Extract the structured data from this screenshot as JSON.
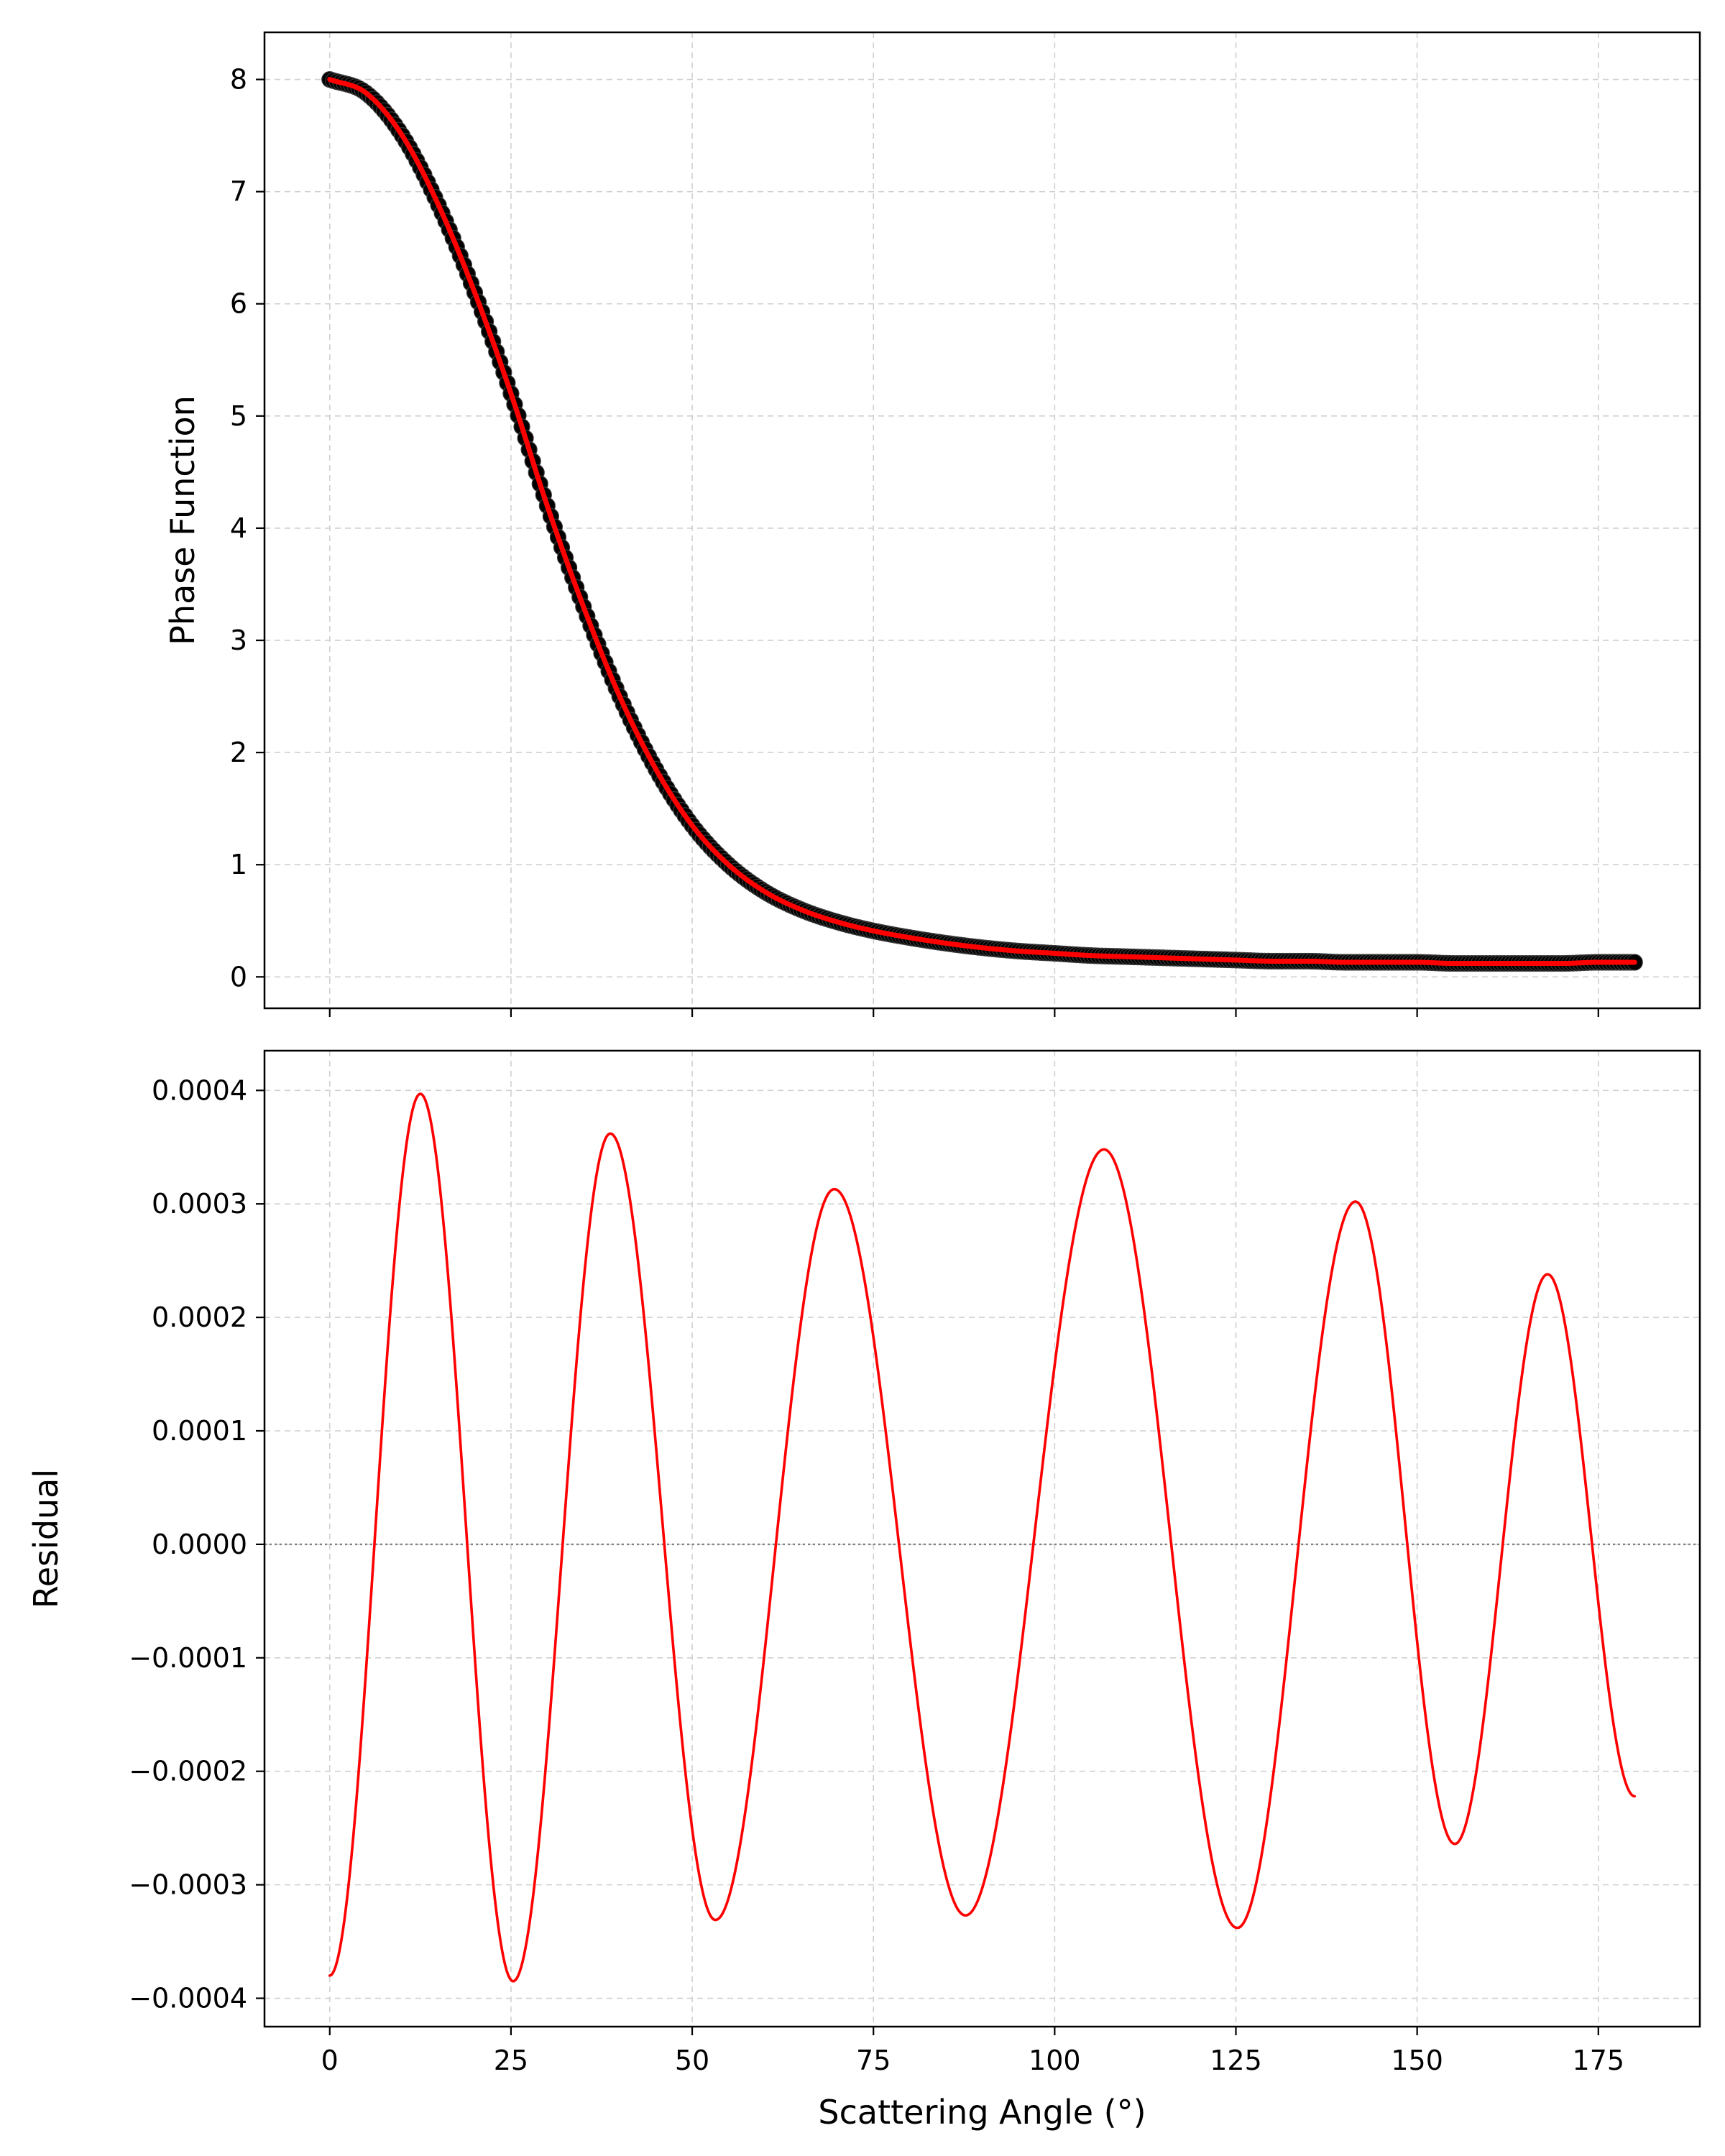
{
  "figure": {
    "background": "#ffffff"
  },
  "chart_data": [
    {
      "type": "line",
      "title": "",
      "xlabel": "",
      "ylabel": "Phase Function",
      "xlim": [
        -9,
        189
      ],
      "ylim": [
        -0.28,
        8.42
      ],
      "xticks": [
        0,
        25,
        50,
        75,
        100,
        125,
        150,
        175
      ],
      "xtick_labels_visible": false,
      "yticks": [
        0,
        1,
        2,
        3,
        4,
        5,
        6,
        7,
        8
      ],
      "ytick_labels": [
        "0",
        "1",
        "2",
        "3",
        "4",
        "5",
        "6",
        "7",
        "8"
      ],
      "grid": true,
      "legend": "none",
      "series": [
        {
          "style": "markers",
          "color": "#000000",
          "x": [
            0,
            5,
            10,
            15,
            20,
            25,
            30,
            35,
            40,
            45,
            50,
            55,
            60,
            65,
            70,
            75,
            80,
            85,
            90,
            95,
            100,
            105,
            110,
            115,
            120,
            125,
            130,
            135,
            140,
            145,
            150,
            155,
            160,
            165,
            170,
            175,
            180
          ],
          "y": [
            8.0,
            7.88,
            7.5,
            6.88,
            6.1,
            5.2,
            4.2,
            3.3,
            2.5,
            1.85,
            1.35,
            1.0,
            0.76,
            0.6,
            0.49,
            0.41,
            0.35,
            0.3,
            0.26,
            0.23,
            0.21,
            0.19,
            0.18,
            0.17,
            0.16,
            0.15,
            0.14,
            0.14,
            0.13,
            0.13,
            0.13,
            0.12,
            0.12,
            0.12,
            0.12,
            0.13,
            0.13
          ]
        },
        {
          "style": "line",
          "color": "#ff0000",
          "x": [
            0,
            5,
            10,
            15,
            20,
            25,
            30,
            35,
            40,
            45,
            50,
            55,
            60,
            65,
            70,
            75,
            80,
            85,
            90,
            95,
            100,
            105,
            110,
            115,
            120,
            125,
            130,
            135,
            140,
            145,
            150,
            155,
            160,
            165,
            170,
            175,
            180
          ],
          "y": [
            8.0,
            7.88,
            7.5,
            6.88,
            6.1,
            5.2,
            4.2,
            3.3,
            2.5,
            1.85,
            1.35,
            1.0,
            0.76,
            0.6,
            0.49,
            0.41,
            0.35,
            0.3,
            0.26,
            0.23,
            0.21,
            0.19,
            0.18,
            0.17,
            0.16,
            0.15,
            0.14,
            0.14,
            0.13,
            0.13,
            0.13,
            0.12,
            0.12,
            0.12,
            0.12,
            0.13,
            0.13
          ]
        }
      ]
    },
    {
      "type": "line",
      "title": "",
      "xlabel": "Scattering Angle (°)",
      "ylabel": "Residual",
      "xlim": [
        -9,
        189
      ],
      "ylim": [
        -0.000425,
        0.000435
      ],
      "xticks": [
        0,
        25,
        50,
        75,
        100,
        125,
        150,
        175
      ],
      "xtick_labels": [
        "0",
        "25",
        "50",
        "75",
        "100",
        "125",
        "150",
        "175"
      ],
      "yticks": [
        -0.0004,
        -0.0003,
        -0.0002,
        -0.0001,
        0,
        0.0001,
        0.0002,
        0.0003,
        0.0004
      ],
      "ytick_labels": [
        "−0.0004",
        "−0.0003",
        "−0.0002",
        "−0.0001",
        "0.0000",
        "0.0001",
        "0.0002",
        "0.0003",
        "0.0004"
      ],
      "grid": true,
      "legend": "none",
      "reference_line": {
        "y": 0,
        "style": "dotted",
        "color": "#808080"
      },
      "series": [
        {
          "style": "line",
          "color": "#ff0000",
          "extrema": [
            [
              0,
              -0.00038
            ],
            [
              12.5,
              0.000397
            ],
            [
              25.3,
              -0.000385
            ],
            [
              38.7,
              0.000362
            ],
            [
              53.2,
              -0.000331
            ],
            [
              69.6,
              0.000313
            ],
            [
              87.7,
              -0.000327
            ],
            [
              106.8,
              0.000348
            ],
            [
              125.2,
              -0.000338
            ],
            [
              141.5,
              0.000302
            ],
            [
              155.2,
              -0.000264
            ],
            [
              168.0,
              0.000238
            ],
            [
              180,
              -0.000222
            ]
          ]
        }
      ]
    }
  ]
}
